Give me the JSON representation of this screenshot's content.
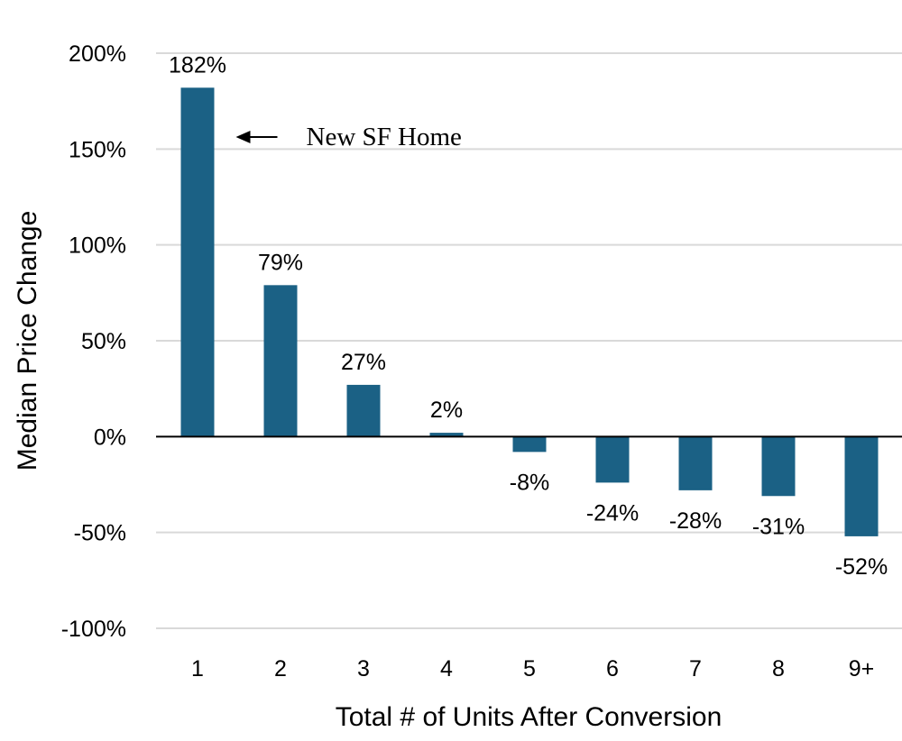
{
  "chart_data": {
    "type": "bar",
    "categories": [
      "1",
      "2",
      "3",
      "4",
      "5",
      "6",
      "7",
      "8",
      "9+"
    ],
    "values": [
      182,
      79,
      27,
      2,
      -8,
      -24,
      -28,
      -31,
      -52
    ],
    "data_labels": [
      "182%",
      "79%",
      "27%",
      "2%",
      "-8%",
      "-24%",
      "-28%",
      "-31%",
      "-52%"
    ],
    "xlabel": "Total # of Units After Conversion",
    "ylabel": "Median Price Change",
    "ylim": [
      -100,
      200
    ],
    "yticks": [
      200,
      150,
      100,
      50,
      0,
      -50,
      -100
    ],
    "ytick_labels": [
      "200%",
      "150%",
      "100%",
      "50%",
      "0%",
      "-50%",
      "-100%"
    ],
    "grid": true,
    "bar_color": "#1b6185",
    "grid_color": "#d9d9d9",
    "annotation": {
      "text": "New SF Home",
      "target_category": "1",
      "arrow": "left"
    }
  }
}
